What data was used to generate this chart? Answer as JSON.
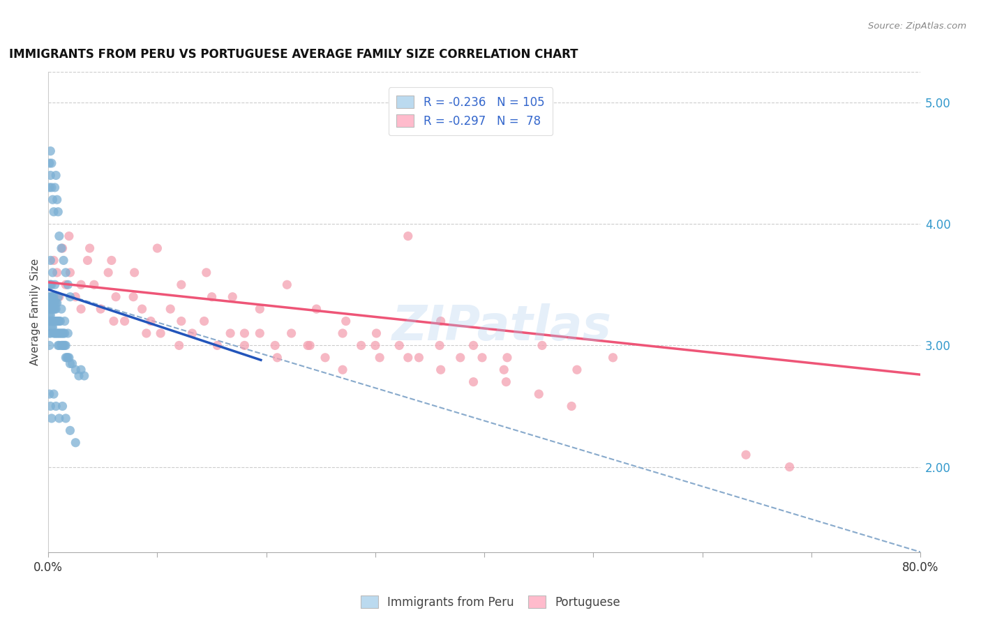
{
  "title": "IMMIGRANTS FROM PERU VS PORTUGUESE AVERAGE FAMILY SIZE CORRELATION CHART",
  "source": "Source: ZipAtlas.com",
  "ylabel": "Average Family Size",
  "xlim": [
    0.0,
    0.8
  ],
  "ylim": [
    1.3,
    5.25
  ],
  "yticks_right": [
    2.0,
    3.0,
    4.0,
    5.0
  ],
  "xticks": [
    0.0,
    0.1,
    0.2,
    0.3,
    0.4,
    0.5,
    0.6,
    0.7,
    0.8
  ],
  "blue_color": "#7BAFD4",
  "pink_color": "#F4A0B0",
  "blue_fill": "#BBDAEF",
  "pink_fill": "#FFBBCC",
  "trend_blue": "#2255BB",
  "trend_pink": "#EE5577",
  "trend_dashed": "#88AACC",
  "watermark": "ZIPatlas",
  "blue_trend_x": [
    0.0,
    0.195
  ],
  "blue_trend_y": [
    3.46,
    2.88
  ],
  "pink_trend_x": [
    0.0,
    0.8
  ],
  "pink_trend_y": [
    3.52,
    2.76
  ],
  "dashed_trend_x": [
    0.0,
    0.8
  ],
  "dashed_trend_y": [
    3.46,
    1.3
  ],
  "peru_x": [
    0.001,
    0.001,
    0.001,
    0.001,
    0.001,
    0.001,
    0.001,
    0.001,
    0.002,
    0.002,
    0.002,
    0.002,
    0.002,
    0.002,
    0.002,
    0.003,
    0.003,
    0.003,
    0.003,
    0.003,
    0.003,
    0.004,
    0.004,
    0.004,
    0.004,
    0.004,
    0.005,
    0.005,
    0.005,
    0.005,
    0.005,
    0.006,
    0.006,
    0.006,
    0.006,
    0.007,
    0.007,
    0.007,
    0.007,
    0.008,
    0.008,
    0.008,
    0.009,
    0.009,
    0.009,
    0.01,
    0.01,
    0.01,
    0.011,
    0.011,
    0.012,
    0.012,
    0.013,
    0.013,
    0.014,
    0.014,
    0.015,
    0.015,
    0.016,
    0.016,
    0.017,
    0.018,
    0.019,
    0.02,
    0.022,
    0.025,
    0.028,
    0.03,
    0.033,
    0.001,
    0.001,
    0.002,
    0.002,
    0.003,
    0.003,
    0.004,
    0.005,
    0.006,
    0.007,
    0.008,
    0.009,
    0.01,
    0.012,
    0.014,
    0.016,
    0.018,
    0.02,
    0.001,
    0.002,
    0.003,
    0.005,
    0.007,
    0.01,
    0.013,
    0.016,
    0.02,
    0.025,
    0.002,
    0.004,
    0.006,
    0.009,
    0.012,
    0.015,
    0.018
  ],
  "peru_y": [
    3.5,
    3.4,
    3.3,
    3.2,
    3.1,
    3.0,
    3.35,
    3.25,
    3.5,
    3.4,
    3.3,
    3.2,
    3.1,
    3.35,
    3.25,
    3.5,
    3.4,
    3.3,
    3.2,
    3.35,
    3.15,
    3.4,
    3.3,
    3.2,
    3.35,
    3.15,
    3.4,
    3.3,
    3.2,
    3.1,
    3.35,
    3.3,
    3.2,
    3.1,
    3.35,
    3.3,
    3.2,
    3.1,
    3.35,
    3.2,
    3.1,
    3.35,
    3.2,
    3.1,
    3.0,
    3.2,
    3.1,
    3.0,
    3.1,
    3.2,
    3.1,
    3.0,
    3.1,
    3.0,
    3.0,
    3.1,
    3.0,
    3.1,
    2.9,
    3.0,
    2.9,
    2.9,
    2.9,
    2.85,
    2.85,
    2.8,
    2.75,
    2.8,
    2.75,
    4.5,
    4.3,
    4.6,
    4.4,
    4.5,
    4.3,
    4.2,
    4.1,
    4.3,
    4.4,
    4.2,
    4.1,
    3.9,
    3.8,
    3.7,
    3.6,
    3.5,
    3.4,
    2.6,
    2.5,
    2.4,
    2.6,
    2.5,
    2.4,
    2.5,
    2.4,
    2.3,
    2.2,
    3.7,
    3.6,
    3.5,
    3.4,
    3.3,
    3.2,
    3.1
  ],
  "port_x": [
    0.002,
    0.005,
    0.008,
    0.01,
    0.013,
    0.016,
    0.02,
    0.025,
    0.03,
    0.036,
    0.042,
    0.048,
    0.055,
    0.062,
    0.07,
    0.078,
    0.086,
    0.094,
    0.103,
    0.112,
    0.122,
    0.132,
    0.143,
    0.155,
    0.167,
    0.18,
    0.194,
    0.208,
    0.223,
    0.238,
    0.254,
    0.27,
    0.287,
    0.304,
    0.322,
    0.34,
    0.359,
    0.378,
    0.398,
    0.418,
    0.019,
    0.038,
    0.058,
    0.079,
    0.1,
    0.122,
    0.145,
    0.169,
    0.194,
    0.219,
    0.246,
    0.273,
    0.301,
    0.33,
    0.36,
    0.39,
    0.421,
    0.453,
    0.485,
    0.518,
    0.03,
    0.06,
    0.09,
    0.12,
    0.15,
    0.18,
    0.21,
    0.24,
    0.27,
    0.3,
    0.33,
    0.36,
    0.39,
    0.42,
    0.45,
    0.48,
    0.64,
    0.68
  ],
  "port_y": [
    3.5,
    3.7,
    3.6,
    3.4,
    3.8,
    3.5,
    3.6,
    3.4,
    3.5,
    3.7,
    3.5,
    3.3,
    3.6,
    3.4,
    3.2,
    3.4,
    3.3,
    3.2,
    3.1,
    3.3,
    3.2,
    3.1,
    3.2,
    3.0,
    3.1,
    3.0,
    3.1,
    3.0,
    3.1,
    3.0,
    2.9,
    3.1,
    3.0,
    2.9,
    3.0,
    2.9,
    3.0,
    2.9,
    2.9,
    2.8,
    3.9,
    3.8,
    3.7,
    3.6,
    3.8,
    3.5,
    3.6,
    3.4,
    3.3,
    3.5,
    3.3,
    3.2,
    3.1,
    3.9,
    3.2,
    3.0,
    2.9,
    3.0,
    2.8,
    2.9,
    3.3,
    3.2,
    3.1,
    3.0,
    3.4,
    3.1,
    2.9,
    3.0,
    2.8,
    3.0,
    2.9,
    2.8,
    2.7,
    2.7,
    2.6,
    2.5,
    2.1,
    2.0
  ]
}
